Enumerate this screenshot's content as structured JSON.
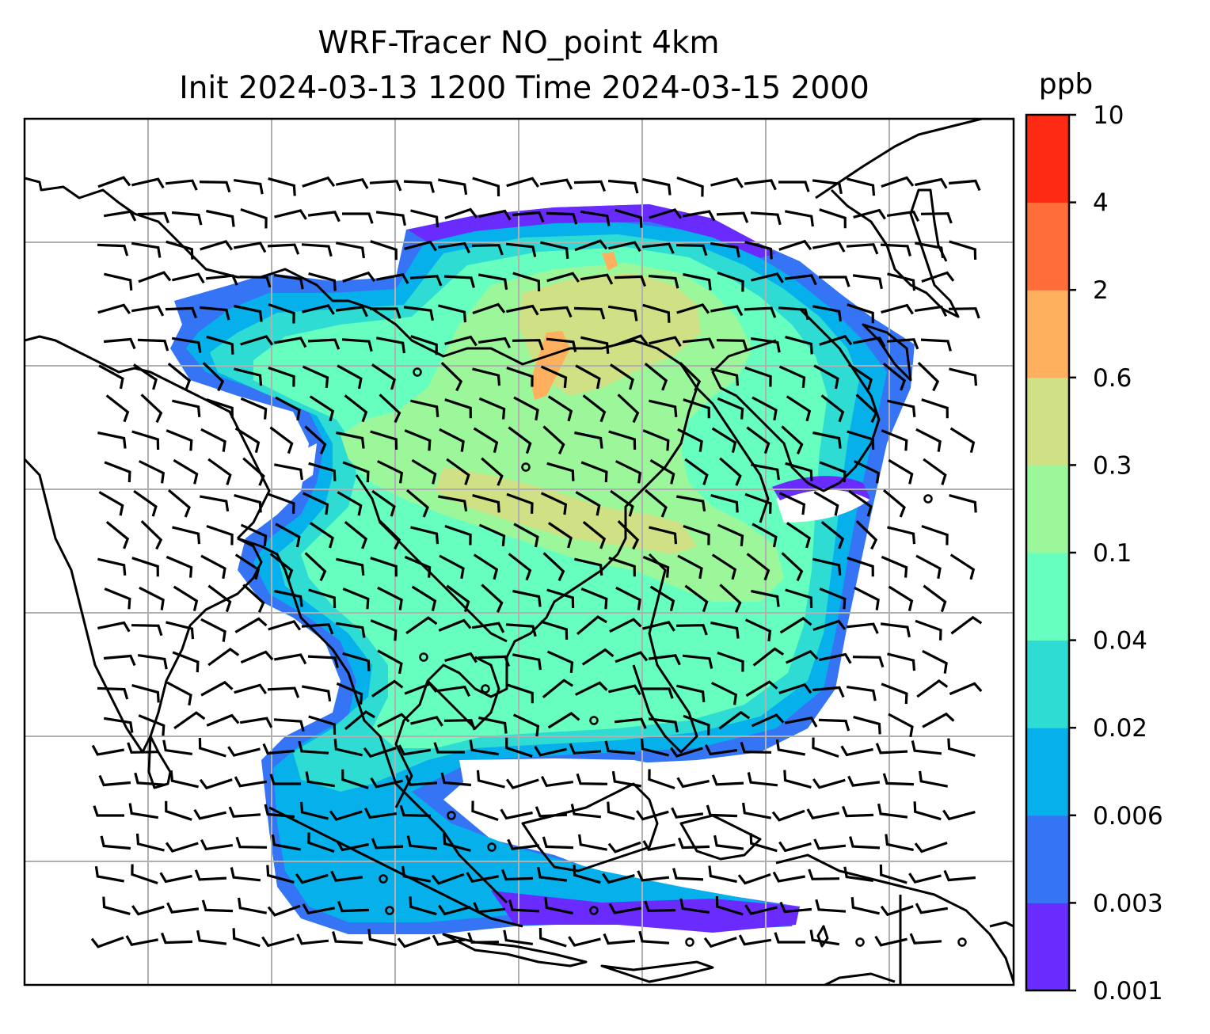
{
  "figure": {
    "title_line1": "WRF-Tracer NO_point 4km",
    "title_line2": "Init 2024-03-13 1200 Time 2024-03-15 2000"
  },
  "colorbar": {
    "unit": "ppb",
    "levels": [
      "0.001",
      "0.003",
      "0.006",
      "0.02",
      "0.04",
      "0.1",
      "0.3",
      "0.6",
      "2",
      "4",
      "10"
    ],
    "colors": [
      "#6a2bff",
      "#3574f5",
      "#06b1eb",
      "#2fdcd3",
      "#66ffbf",
      "#9cf79a",
      "#d0e084",
      "#ffb05e",
      "#ff6e3a",
      "#ff2a14"
    ]
  },
  "map": {
    "gridlines": true,
    "grid_color": "#b0b0b0",
    "coastline_color": "#000000"
  }
}
